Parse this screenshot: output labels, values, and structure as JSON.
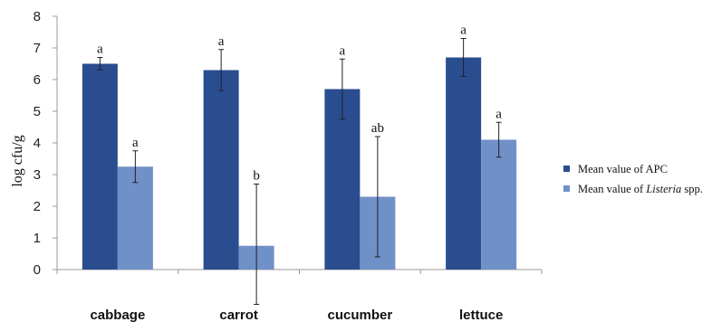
{
  "chart_data": {
    "type": "bar",
    "ylabel": "log  cfu/g",
    "ylim": [
      0,
      8
    ],
    "yticks": [
      "0",
      "1",
      "2",
      "3",
      "4",
      "5",
      "6",
      "7",
      "8"
    ],
    "categories": [
      "cabbage",
      "carrot",
      "cucumber",
      "lettuce"
    ],
    "series": [
      {
        "name": "Mean value of APC",
        "color": "#2a4d8f",
        "values": [
          6.5,
          6.3,
          5.7,
          6.7
        ],
        "err_low": [
          6.3,
          5.65,
          4.75,
          6.1
        ],
        "err_high": [
          6.7,
          6.95,
          6.65,
          7.3
        ],
        "labels": [
          "a",
          "a",
          "a",
          "a"
        ]
      },
      {
        "name_parts": [
          "Mean value of ",
          "Listeria",
          " spp."
        ],
        "color": "#7090c8",
        "values": [
          3.25,
          0.75,
          2.3,
          4.1
        ],
        "err_low": [
          2.75,
          -1.1,
          0.4,
          3.55
        ],
        "err_high": [
          3.75,
          2.7,
          4.2,
          4.65
        ],
        "labels": [
          "a",
          "b",
          "ab",
          "a"
        ]
      }
    ],
    "legend_position": "right",
    "grid": false
  }
}
